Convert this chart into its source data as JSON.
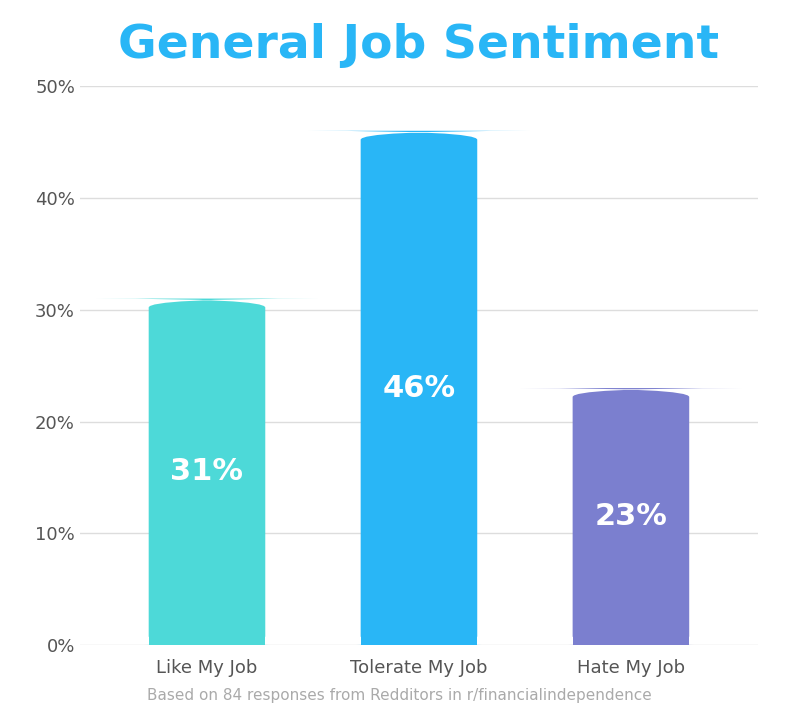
{
  "title": "General Job Sentiment",
  "title_color": "#29b6f6",
  "title_fontsize": 34,
  "categories": [
    "Like My Job",
    "Tolerate My Job",
    "Hate My Job"
  ],
  "values": [
    31,
    46,
    23
  ],
  "bar_colors": [
    "#4dd9d8",
    "#29b6f6",
    "#7b7fcf"
  ],
  "bar_labels": [
    "31%",
    "46%",
    "23%"
  ],
  "label_color": "#ffffff",
  "label_fontsize": 22,
  "ylim": [
    0,
    50
  ],
  "yticks": [
    0,
    10,
    20,
    30,
    40,
    50
  ],
  "ytick_labels": [
    "0%",
    "10%",
    "20%",
    "30%",
    "40%",
    "50%"
  ],
  "tick_fontsize": 13,
  "grid_color": "#dddddd",
  "background_color": "#ffffff",
  "footnote": "Based on 84 responses from Redditors in r/financialindependence",
  "footnote_color": "#aaaaaa",
  "footnote_fontsize": 11,
  "bar_width": 0.55
}
